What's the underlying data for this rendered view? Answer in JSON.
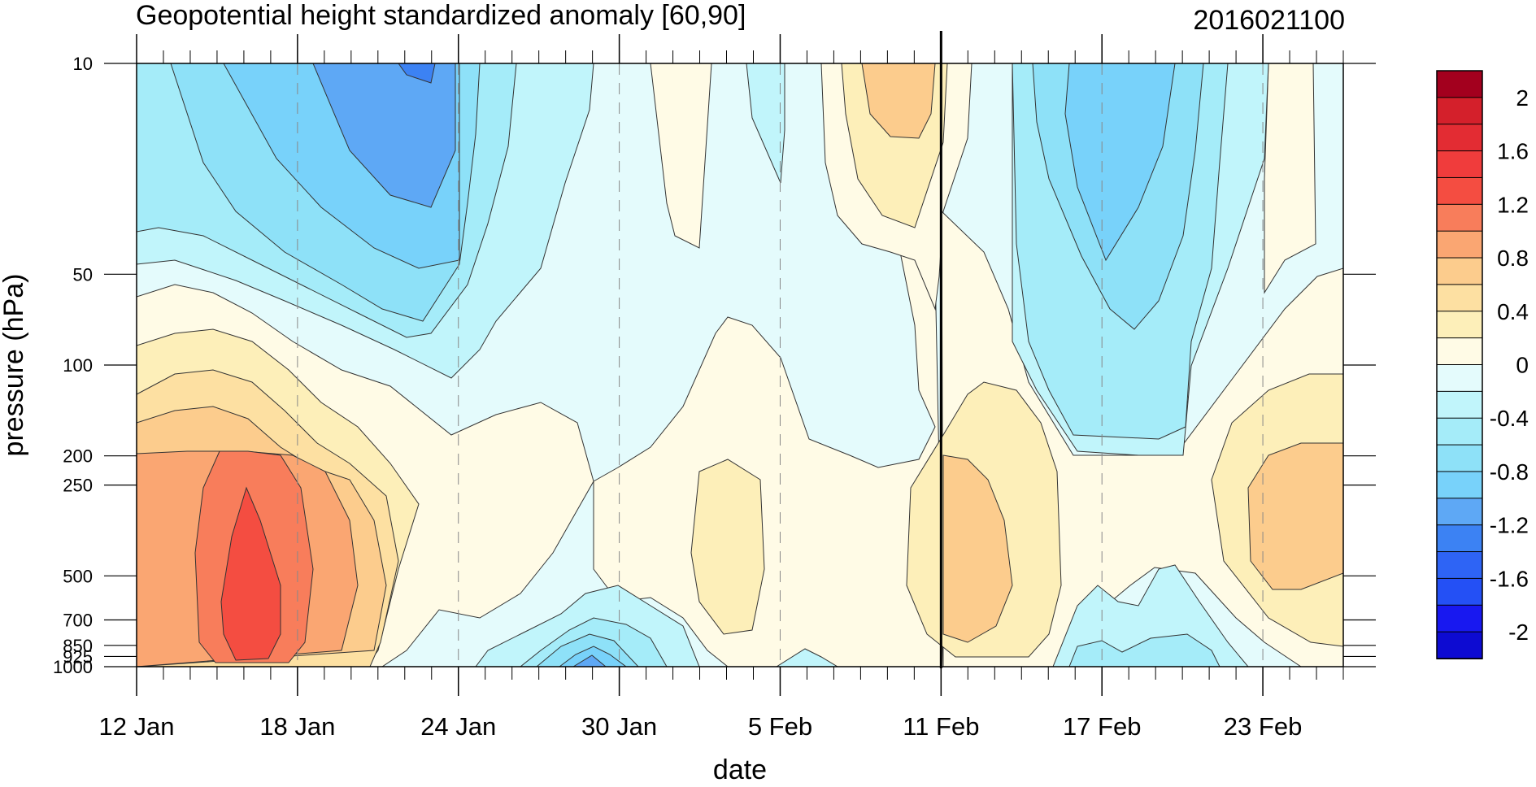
{
  "chart_data": {
    "type": "heatmap",
    "subtype": "filled-contour (time vs pressure)",
    "title": "Geopotential height standardized anomaly [60,90]",
    "right_title": "2016021100",
    "xlabel": "date",
    "ylabel": "pressure (hPa)",
    "y_axis": {
      "scale": "log",
      "reversed": true,
      "range": [
        10,
        1000
      ],
      "ticks": [
        10,
        50,
        100,
        200,
        250,
        500,
        700,
        850,
        925,
        1000
      ],
      "tick_labels": [
        "10",
        "50",
        "100",
        "200",
        "250",
        "500",
        "700",
        "850",
        "925",
        "1000"
      ]
    },
    "x_axis": {
      "range": [
        "2016-01-12",
        "2016-02-26"
      ],
      "tick_dates": [
        "2016-01-12",
        "2016-01-18",
        "2016-01-24",
        "2016-01-30",
        "2016-02-05",
        "2016-02-11",
        "2016-02-17",
        "2016-02-23"
      ],
      "tick_labels": [
        "12 Jan",
        "18 Jan",
        "24 Jan",
        "30 Jan",
        "5 Feb",
        "11 Feb",
        "17 Feb",
        "23 Feb"
      ],
      "minor_ticks": "daily",
      "dashed_gridlines_at_ticks": true
    },
    "vertical_marker_date": "2016-02-11",
    "colorbar": {
      "placement": "right",
      "levels": [
        -2.2,
        -2.0,
        -1.8,
        -1.6,
        -1.4,
        -1.2,
        -1.0,
        -0.8,
        -0.6,
        -0.4,
        -0.2,
        0,
        0.2,
        0.4,
        0.6,
        0.8,
        1.0,
        1.2,
        1.4,
        1.6,
        1.8,
        2.0,
        2.2
      ],
      "colors": [
        "#0d0bd2",
        "#1818f0",
        "#2450f5",
        "#2e64f5",
        "#3c82f3",
        "#5ea8f5",
        "#78d2fa",
        "#8ee1f8",
        "#a5ecf9",
        "#c1f5fb",
        "#e4fbfc",
        "#fffbe6",
        "#fdefb9",
        "#fde0a2",
        "#fccc8d",
        "#faa672",
        "#f87d5b",
        "#f44d41",
        "#f03c3c",
        "#e32c33",
        "#d4202b",
        "#a3001e"
      ],
      "labels": [
        "2",
        "1.6",
        "1.2",
        "0.8",
        "0.4",
        "0",
        "-0.4",
        "-0.8",
        "-1.2",
        "-1.6",
        "-2"
      ]
    },
    "anomaly_features": [
      {
        "date": "2016-01-15",
        "pressure": 600,
        "value": 1.5
      },
      {
        "date": "2016-01-14",
        "pressure": 400,
        "value": 1.0
      },
      {
        "date": "2016-01-15",
        "pressure": 110,
        "value": 0.4
      },
      {
        "date": "2016-01-22",
        "pressure": 10,
        "value": -1.2
      },
      {
        "date": "2016-01-21",
        "pressure": 25,
        "value": -0.9
      },
      {
        "date": "2016-01-15",
        "pressure": 20,
        "value": -0.5
      },
      {
        "date": "2016-01-26",
        "pressure": 250,
        "value": 0.3
      },
      {
        "date": "2016-01-29",
        "pressure": 1000,
        "value": -1.0
      },
      {
        "date": "2016-02-03",
        "pressure": 400,
        "value": 0.3
      },
      {
        "date": "2016-02-09",
        "pressure": 20,
        "value": 0.7
      },
      {
        "date": "2016-02-13",
        "pressure": 500,
        "value": 0.8
      },
      {
        "date": "2016-02-17",
        "pressure": 25,
        "value": -0.8
      },
      {
        "date": "2016-02-17",
        "pressure": 950,
        "value": -0.4
      },
      {
        "date": "2016-02-24",
        "pressure": 300,
        "value": 0.6
      }
    ],
    "grid": "dashed vertical lines at labeled dates"
  }
}
